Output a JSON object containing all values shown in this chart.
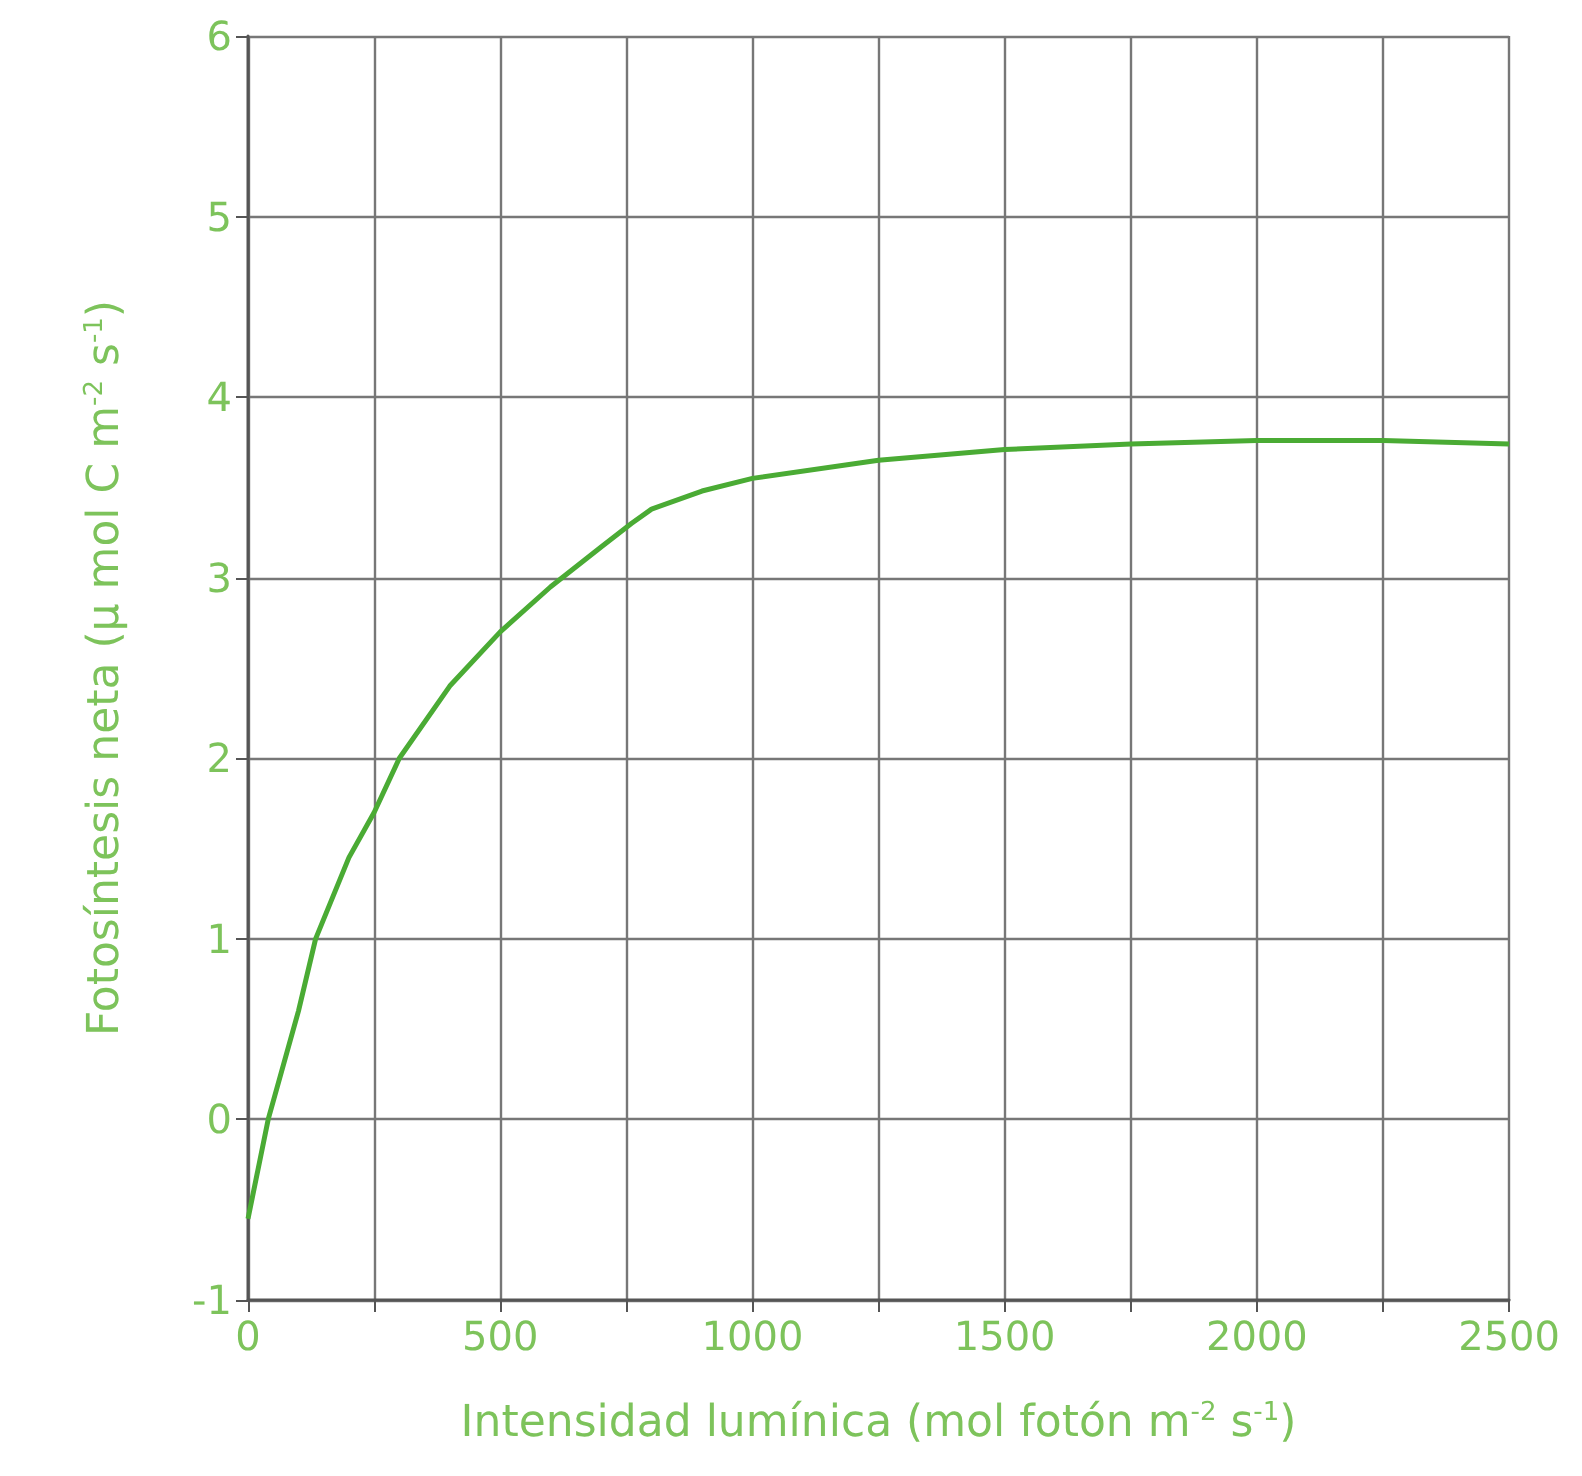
{
  "chart_data": {
    "type": "line",
    "xlabel": "Intensidad lumínica (mol fotón m$^{-2}$ s$^{-1}$)",
    "ylabel": "Fotosíntesis neta (µ mol C m$^{-2}$ s$^{-1}$)",
    "x": [
      0,
      40,
      100,
      134,
      200,
      250,
      300,
      400,
      500,
      600,
      700,
      760,
      800,
      900,
      1000,
      1250,
      1500,
      1750,
      2000,
      2250,
      2500
    ],
    "series": [
      {
        "color": "#4aab34",
        "values": [
          -0.55,
          0,
          0.6,
          1,
          1.45,
          1.7,
          2.0,
          2.4,
          2.7,
          2.95,
          3.17,
          3.3,
          3.38,
          3.48,
          3.55,
          3.65,
          3.71,
          3.74,
          3.76,
          3.76,
          3.74
        ]
      }
    ],
    "xlim": [
      0,
      2500
    ],
    "xticks": [
      0,
      {
        "value": 250,
        "label": null
      },
      500,
      {
        "value": 750,
        "label": null
      },
      1000,
      {
        "value": 1250,
        "label": null
      },
      1500,
      {
        "value": 1750,
        "label": null
      },
      2000,
      {
        "value": 2250,
        "label": null
      },
      2500
    ],
    "ylim": [
      -1,
      6
    ],
    "yticks": [
      -1,
      0,
      1,
      2,
      3,
      4,
      5,
      6
    ],
    "grid": true,
    "marker": "none",
    "line_style": "solid"
  }
}
